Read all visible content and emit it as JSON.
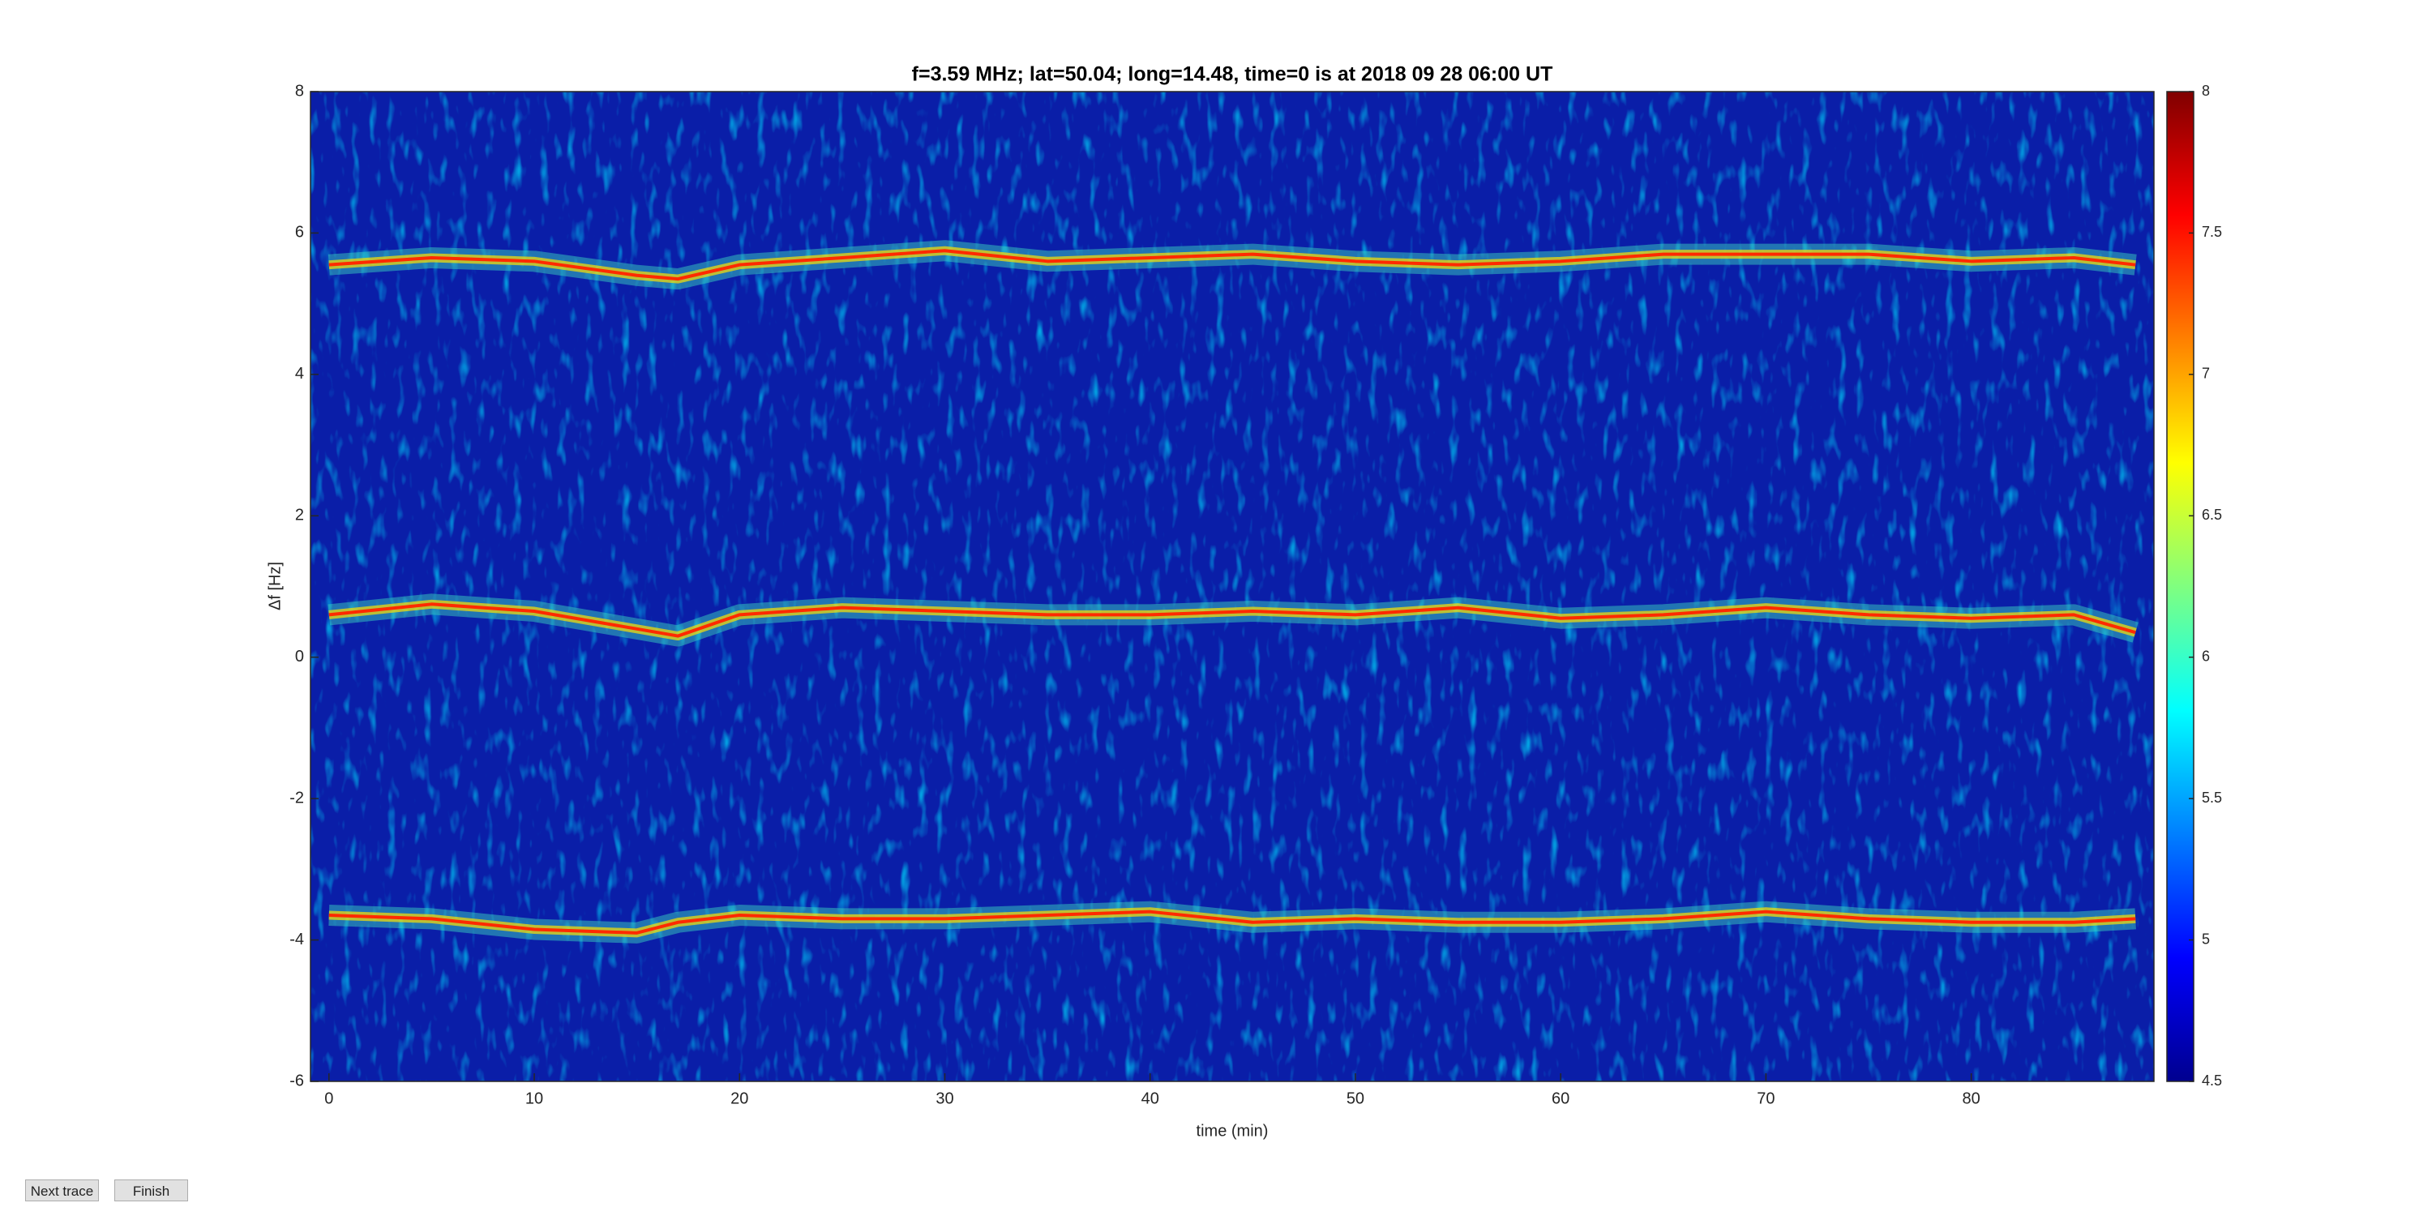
{
  "chart_data": {
    "type": "spectrogram",
    "title": "f=3.59 MHz;  lat=50.04; long=14.48, time=0 is at 2018 09 28 06:00 UT",
    "x_label": "time (min)",
    "y_label": "Δf [Hz]",
    "xlim": [
      -0.9,
      88.9
    ],
    "ylim": [
      -6,
      8
    ],
    "xticks": [
      0,
      10,
      20,
      30,
      40,
      50,
      60,
      70,
      80
    ],
    "yticks": [
      -6,
      -4,
      -2,
      0,
      2,
      4,
      6,
      8
    ],
    "colorbar": {
      "clim": [
        4.5,
        8
      ],
      "ticks": [
        4.5,
        5,
        5.5,
        6,
        6.5,
        7,
        7.5,
        8
      ],
      "colormap": "jet"
    },
    "x": [
      0,
      5,
      10,
      15,
      17,
      20,
      25,
      30,
      35,
      40,
      45,
      50,
      55,
      60,
      65,
      70,
      75,
      80,
      85,
      88
    ],
    "series": [
      {
        "color": "#ff2a00",
        "values": [
          5.55,
          5.65,
          5.6,
          5.4,
          5.35,
          5.55,
          5.65,
          5.75,
          5.6,
          5.65,
          5.7,
          5.6,
          5.55,
          5.6,
          5.7,
          5.7,
          5.7,
          5.6,
          5.65,
          5.55
        ]
      },
      {
        "color": "#ff2a00",
        "values": [
          0.6,
          0.75,
          0.65,
          0.4,
          0.3,
          0.6,
          0.7,
          0.65,
          0.6,
          0.6,
          0.65,
          0.6,
          0.7,
          0.55,
          0.6,
          0.7,
          0.6,
          0.55,
          0.6,
          0.35
        ]
      },
      {
        "color": "#ff2a00",
        "values": [
          -3.65,
          -3.7,
          -3.85,
          -3.9,
          -3.75,
          -3.65,
          -3.7,
          -3.7,
          -3.65,
          -3.6,
          -3.75,
          -3.7,
          -3.75,
          -3.75,
          -3.7,
          -3.6,
          -3.7,
          -3.75,
          -3.75,
          -3.7
        ]
      }
    ]
  },
  "buttons": [
    {
      "label": "Next trace"
    },
    {
      "label": "Finish"
    }
  ]
}
